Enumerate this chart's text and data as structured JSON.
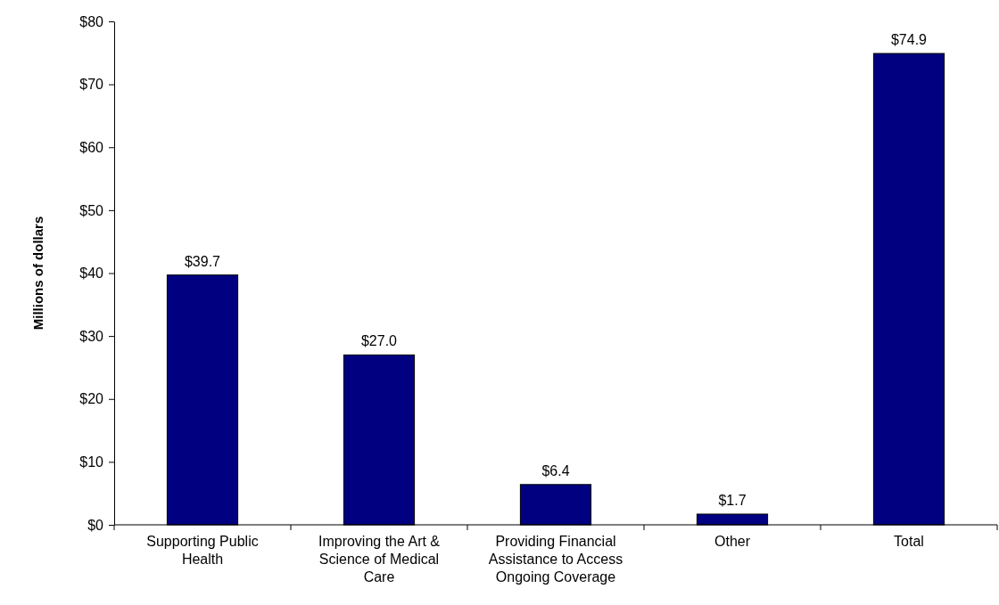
{
  "chart_data": {
    "type": "bar",
    "categories": [
      "Supporting Public Health",
      "Improving the Art & Science of Medical Care",
      "Providing Financial Assistance to Access Ongoing Coverage",
      "Other",
      "Total"
    ],
    "values": [
      39.7,
      27.0,
      6.4,
      1.7,
      74.9
    ],
    "value_labels": [
      "$39.7",
      "$27.0",
      "$6.4",
      "$1.7",
      "$74.9"
    ],
    "color": "#000080",
    "ylabel": "Millions of dollars",
    "ylim": [
      0,
      80
    ],
    "yticks": [
      {
        "value": 0,
        "label": "$0"
      },
      {
        "value": 10,
        "label": "$10"
      },
      {
        "value": 20,
        "label": "$20"
      },
      {
        "value": 30,
        "label": "$30"
      },
      {
        "value": 40,
        "label": "$40"
      },
      {
        "value": 50,
        "label": "$50"
      },
      {
        "value": 60,
        "label": "$60"
      },
      {
        "value": 70,
        "label": "$70"
      },
      {
        "value": 80,
        "label": "$80"
      }
    ],
    "grid": false
  }
}
